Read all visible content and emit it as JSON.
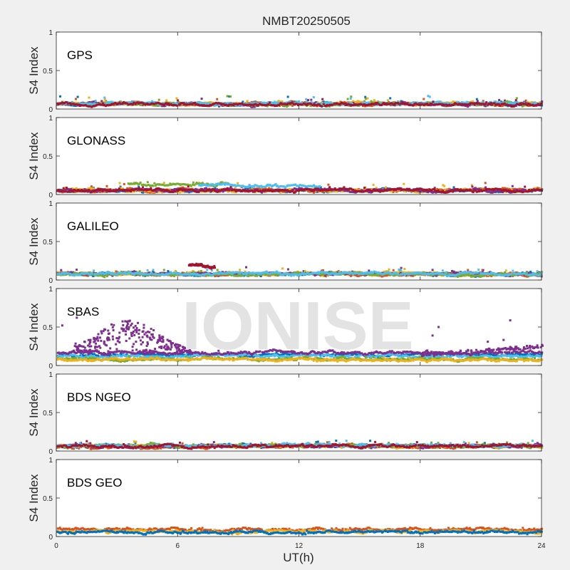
{
  "figure": {
    "title": "NMBT20250505",
    "xlabel": "UT(h)",
    "watermark": "IONISE"
  },
  "colors": {
    "background": "#f0f0f0",
    "axes_face": "#ffffff",
    "axis": "#262626",
    "watermark": "#e3e3e3",
    "series_palette": [
      "#0072BD",
      "#D95319",
      "#EDB120",
      "#7E2F8E",
      "#77AC30",
      "#4DBEEE",
      "#A2142F"
    ]
  },
  "chart_data": [
    {
      "type": "scatter",
      "panel_label": "GPS",
      "ylabel": "S4 Index",
      "xlim": [
        0,
        24
      ],
      "ylim": [
        0,
        1
      ],
      "xticks": [
        0,
        6,
        12,
        18,
        24
      ],
      "yticks": [
        0,
        0.5,
        1
      ],
      "xticklabels": [],
      "yticklabels": [
        "0",
        "0.5",
        "1"
      ],
      "grid": false,
      "series_summary": [
        {
          "color": "#0072BD",
          "x_range": [
            0,
            24
          ],
          "s4_typical": 0.06,
          "s4_max": 0.16
        },
        {
          "color": "#D95319",
          "x_range": [
            0,
            24
          ],
          "s4_typical": 0.06,
          "s4_max": 0.14
        },
        {
          "color": "#EDB120",
          "x_range": [
            0,
            24
          ],
          "s4_typical": 0.07,
          "s4_max": 0.15
        },
        {
          "color": "#7E2F8E",
          "x_range": [
            0,
            24
          ],
          "s4_typical": 0.06,
          "s4_max": 0.13
        },
        {
          "color": "#77AC30",
          "x_range": [
            0,
            24
          ],
          "s4_typical": 0.06,
          "s4_max": 0.17
        },
        {
          "color": "#4DBEEE",
          "x_range": [
            0,
            24
          ],
          "s4_typical": 0.07,
          "s4_max": 0.17
        },
        {
          "color": "#A2142F",
          "x_range": [
            0,
            24
          ],
          "s4_typical": 0.06,
          "s4_max": 0.13
        }
      ]
    },
    {
      "type": "scatter",
      "panel_label": "GLONASS",
      "ylabel": "S4 Index",
      "xlim": [
        0,
        24
      ],
      "ylim": [
        0,
        1
      ],
      "xticks": [
        0,
        6,
        12,
        18,
        24
      ],
      "yticks": [
        0,
        0.5,
        1
      ],
      "xticklabels": [],
      "yticklabels": [
        "0",
        "0.5",
        "1"
      ],
      "grid": false,
      "series_summary": [
        {
          "color": "#0072BD",
          "x_range": [
            0,
            24
          ],
          "s4_typical": 0.05,
          "s4_max": 0.12
        },
        {
          "color": "#D95319",
          "x_range": [
            0,
            24
          ],
          "s4_typical": 0.05,
          "s4_max": 0.15
        },
        {
          "color": "#EDB120",
          "x_range": [
            0,
            24
          ],
          "s4_typical": 0.05,
          "s4_max": 0.15
        },
        {
          "color": "#7E2F8E",
          "x_range": [
            0,
            24
          ],
          "s4_typical": 0.05,
          "s4_max": 0.12
        },
        {
          "color": "#77AC30",
          "x_range": [
            3.5,
            8.5
          ],
          "s4_typical": 0.13,
          "s4_max": 0.16
        },
        {
          "color": "#4DBEEE",
          "x_range": [
            7,
            13
          ],
          "s4_typical": 0.11,
          "s4_max": 0.15
        },
        {
          "color": "#A2142F",
          "x_range": [
            0,
            24
          ],
          "s4_typical": 0.05,
          "s4_max": 0.1
        }
      ]
    },
    {
      "type": "scatter",
      "panel_label": "GALILEO",
      "ylabel": "S4 Index",
      "xlim": [
        0,
        24
      ],
      "ylim": [
        0,
        1
      ],
      "xticks": [
        0,
        6,
        12,
        18,
        24
      ],
      "yticks": [
        0,
        0.5,
        1
      ],
      "xticklabels": [],
      "yticklabels": [
        "0",
        "0.5",
        "1"
      ],
      "grid": false,
      "series_summary": [
        {
          "color": "#0072BD",
          "x_range": [
            0,
            24
          ],
          "s4_typical": 0.07,
          "s4_max": 0.12
        },
        {
          "color": "#D95319",
          "x_range": [
            0,
            24
          ],
          "s4_typical": 0.07,
          "s4_max": 0.13
        },
        {
          "color": "#EDB120",
          "x_range": [
            0,
            24
          ],
          "s4_typical": 0.08,
          "s4_max": 0.15
        },
        {
          "color": "#7E2F8E",
          "x_range": [
            0,
            24
          ],
          "s4_typical": 0.08,
          "s4_max": 0.17
        },
        {
          "color": "#77AC30",
          "x_range": [
            0,
            24
          ],
          "s4_typical": 0.07,
          "s4_max": 0.13
        },
        {
          "color": "#4DBEEE",
          "x_range": [
            0,
            24
          ],
          "s4_typical": 0.08,
          "s4_max": 0.14
        },
        {
          "color": "#A2142F",
          "x_range": [
            6.5,
            7.8
          ],
          "s4_typical": 0.18,
          "s4_max": 0.3
        }
      ]
    },
    {
      "type": "scatter",
      "panel_label": "SBAS",
      "ylabel": "S4 Index",
      "xlim": [
        0,
        24
      ],
      "ylim": [
        0,
        1
      ],
      "xticks": [
        0,
        6,
        12,
        18,
        24
      ],
      "yticks": [
        0,
        0.5,
        1
      ],
      "xticklabels": [],
      "yticklabels": [
        "0",
        "0.5",
        "1"
      ],
      "grid": false,
      "series_summary": [
        {
          "color": "#0072BD",
          "x_range": [
            0,
            24
          ],
          "s4_typical": 0.13,
          "s4_max": 0.18
        },
        {
          "color": "#4DBEEE",
          "x_range": [
            0,
            24
          ],
          "s4_typical": 0.12,
          "s4_max": 0.16
        },
        {
          "color": "#77AC30",
          "x_range": [
            0,
            24
          ],
          "s4_typical": 0.08,
          "s4_max": 0.11
        },
        {
          "color": "#EDB120",
          "x_range": [
            0,
            24
          ],
          "s4_typical": 0.07,
          "s4_max": 0.1
        },
        {
          "color": "#7E2F8E",
          "x_range": [
            0,
            24
          ],
          "s4_typical": 0.16,
          "s4_max": 0.62,
          "note_range": "enhanced 1-6.5 h; rising again 21-24 h to ~0.25"
        }
      ]
    },
    {
      "type": "scatter",
      "panel_label": "BDS NGEO",
      "ylabel": "S4 Index",
      "xlim": [
        0,
        24
      ],
      "ylim": [
        0,
        1
      ],
      "xticks": [
        0,
        6,
        12,
        18,
        24
      ],
      "yticks": [
        0,
        0.5,
        1
      ],
      "xticklabels": [],
      "yticklabels": [
        "0",
        "0.5",
        "1"
      ],
      "grid": false,
      "series_summary": [
        {
          "color": "#0072BD",
          "x_range": [
            0,
            24
          ],
          "s4_typical": 0.06,
          "s4_max": 0.13
        },
        {
          "color": "#D95319",
          "x_range": [
            0,
            24
          ],
          "s4_typical": 0.05,
          "s4_max": 0.12
        },
        {
          "color": "#EDB120",
          "x_range": [
            0,
            24
          ],
          "s4_typical": 0.06,
          "s4_max": 0.13
        },
        {
          "color": "#7E2F8E",
          "x_range": [
            0,
            24
          ],
          "s4_typical": 0.06,
          "s4_max": 0.12
        },
        {
          "color": "#77AC30",
          "x_range": [
            0,
            24
          ],
          "s4_typical": 0.06,
          "s4_max": 0.12
        },
        {
          "color": "#4DBEEE",
          "x_range": [
            0,
            24
          ],
          "s4_typical": 0.07,
          "s4_max": 0.13
        },
        {
          "color": "#A2142F",
          "x_range": [
            0,
            24
          ],
          "s4_typical": 0.06,
          "s4_max": 0.13
        }
      ]
    },
    {
      "type": "scatter",
      "panel_label": "BDS GEO",
      "ylabel": "S4 Index",
      "xlim": [
        0,
        24
      ],
      "ylim": [
        0,
        1
      ],
      "xticks": [
        0,
        6,
        12,
        18,
        24
      ],
      "yticks": [
        0,
        0.5,
        1
      ],
      "xticklabels": [
        "0",
        "6",
        "12",
        "18",
        "24"
      ],
      "yticklabels": [
        "0",
        "0.5",
        "1"
      ],
      "grid": false,
      "series_summary": [
        {
          "color": "#D95319",
          "x_range": [
            0,
            24
          ],
          "s4_typical": 0.09,
          "s4_max": 0.11
        },
        {
          "color": "#EDB120",
          "x_range": [
            0,
            24
          ],
          "s4_typical": 0.06,
          "s4_max": 0.08
        },
        {
          "color": "#0072BD",
          "x_range": [
            0,
            24
          ],
          "s4_typical": 0.05,
          "s4_max": 0.07
        }
      ]
    }
  ]
}
